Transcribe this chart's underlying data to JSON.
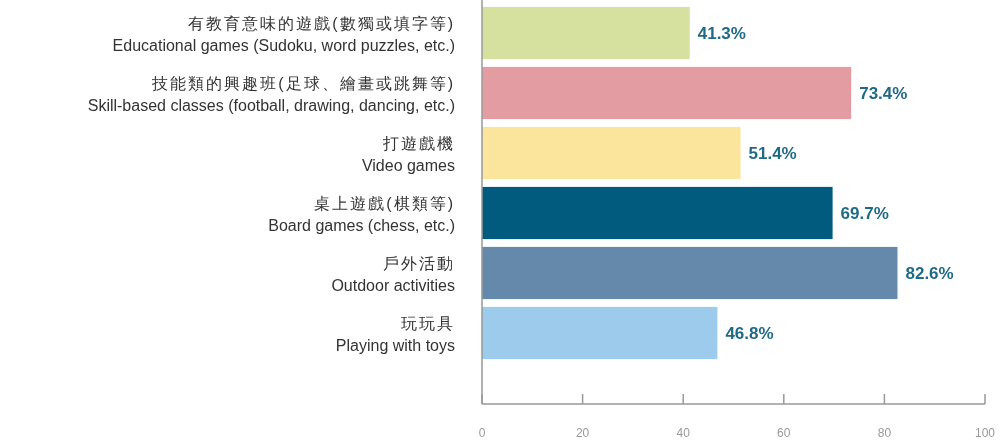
{
  "chart_data": {
    "type": "bar",
    "orientation": "horizontal",
    "categories": [
      "有教育意味的遊戲(數獨或填字等)\nEducational games (Sudoku, word puzzles, etc.)",
      "技能類的興趣班(足球、繪畫或跳舞等)\nSkill-based classes (football, drawing, dancing, etc.)",
      "打遊戲機\nVideo games",
      "桌上遊戲(棋類等)\nBoard games (chess, etc.)",
      "戶外活動\nOutdoor activities",
      "玩玩具\nPlaying with toys"
    ],
    "values": [
      41.3,
      73.4,
      51.4,
      69.7,
      82.6,
      46.8
    ],
    "colors": [
      "#d6e09f",
      "#e49ca3",
      "#fbe49b",
      "#005b7f",
      "#6489ab",
      "#9ccbec"
    ],
    "value_labels": [
      "41.3%",
      "73.4%",
      "51.4%",
      "69.7%",
      "82.6%",
      "46.8%"
    ],
    "xlim": [
      0,
      100
    ],
    "xticks": [
      0,
      20,
      40,
      60,
      80,
      100
    ]
  }
}
